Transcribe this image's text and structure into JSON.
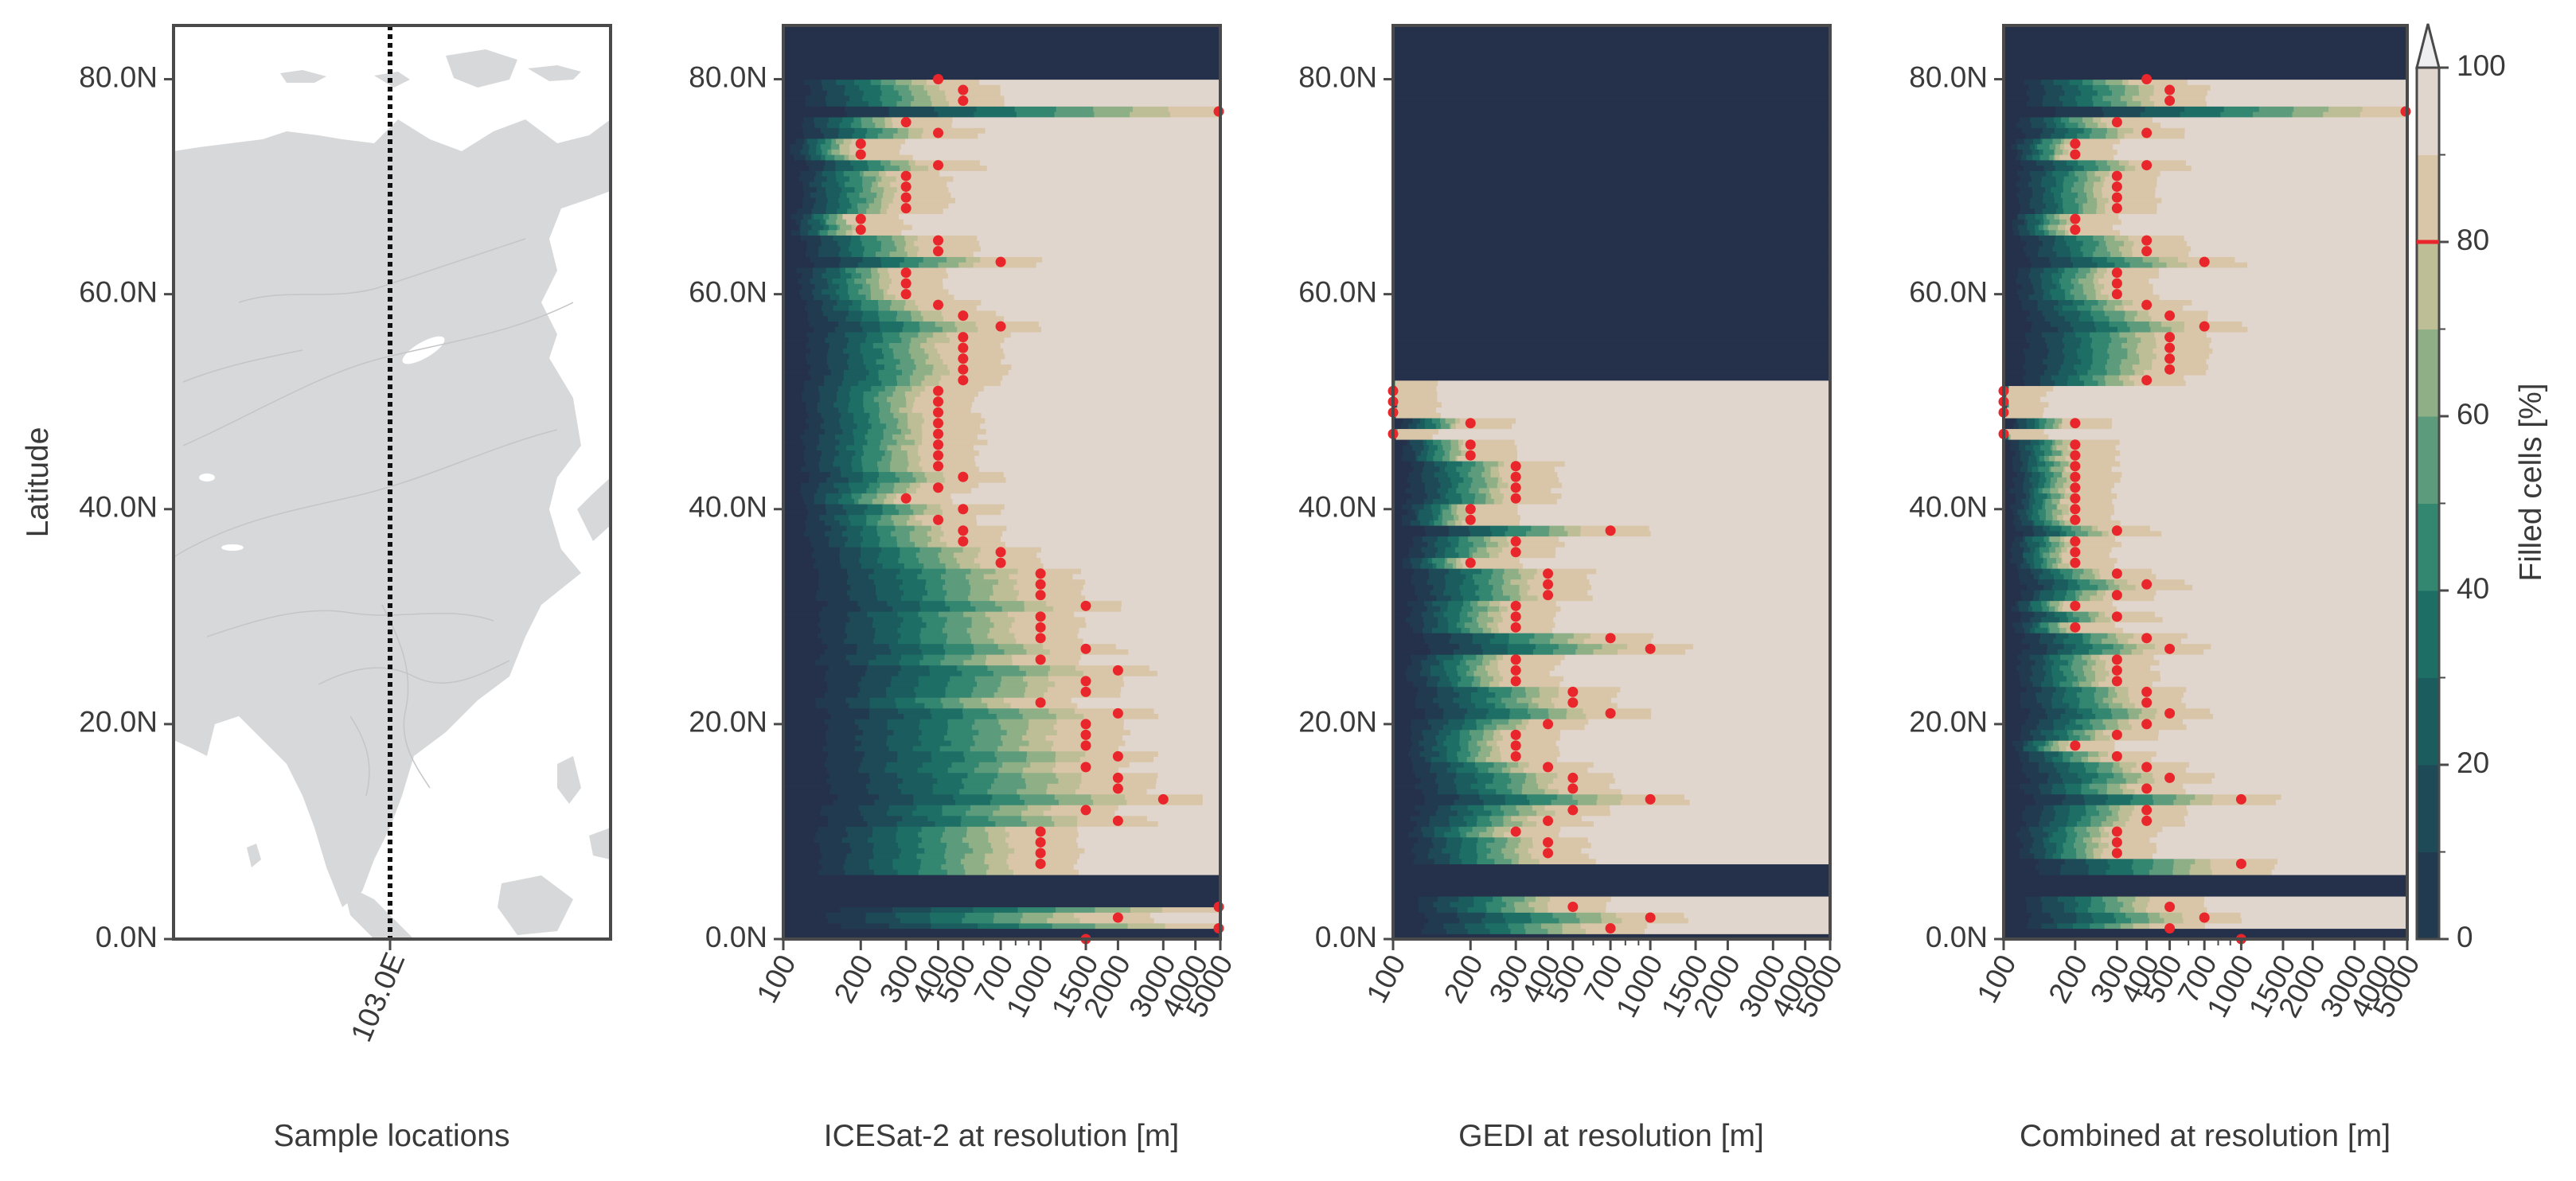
{
  "colors": {
    "bands": [
      "#25314a",
      "#213a4f",
      "#1e4a57",
      "#1b5c5e",
      "#1d6f66",
      "#338670",
      "#5c9c7c",
      "#8faf86",
      "#bdbd96",
      "#d9c5a8",
      "#e1d6cd",
      "#eeedef"
    ],
    "point": "#e8262b",
    "land": "#d7d8d9",
    "border": "#4a4a4a",
    "colorbar_marker": "#e8262b"
  },
  "chart_data": [
    {
      "type": "map",
      "xlabel": "Sample locations",
      "ylabel": "Latitude",
      "x_tick": "103.0E",
      "ylim": [
        0,
        85
      ],
      "yticks": [
        0,
        20,
        40,
        60,
        80
      ],
      "ytick_labels": [
        "0.0N",
        "20.0N",
        "40.0N",
        "60.0N",
        "80.0N"
      ],
      "sample_longitude": 103.0
    },
    {
      "type": "heatmap",
      "xlabel": "ICESat-2 at resolution [m]",
      "xscale": "log",
      "xlim": [
        100,
        5000
      ],
      "xticks": [
        100,
        200,
        300,
        400,
        500,
        700,
        1000,
        1500,
        2000,
        3000,
        4000,
        5000
      ],
      "xtick_labels": [
        "100",
        "200",
        "300",
        "400",
        "500",
        "700",
        "1000",
        "1500",
        "2000",
        "3000",
        "4000",
        "5000"
      ],
      "ylim": [
        0,
        85
      ],
      "yticks": [
        0,
        20,
        40,
        60,
        80
      ],
      "ytick_labels": [
        "0.0N",
        "20.0N",
        "40.0N",
        "60.0N",
        "80.0N"
      ],
      "empty_lat_bands": [
        [
          0,
          1
        ],
        [
          3,
          6
        ],
        [
          80,
          85
        ]
      ],
      "red_points": [
        [
          80,
          400
        ],
        [
          79,
          500
        ],
        [
          78,
          500
        ],
        [
          77,
          5000
        ],
        [
          76,
          300
        ],
        [
          75,
          400
        ],
        [
          74,
          200
        ],
        [
          73,
          200
        ],
        [
          72,
          400
        ],
        [
          71,
          300
        ],
        [
          70,
          300
        ],
        [
          69,
          300
        ],
        [
          68,
          300
        ],
        [
          67,
          200
        ],
        [
          66,
          200
        ],
        [
          65,
          400
        ],
        [
          64,
          400
        ],
        [
          63,
          700
        ],
        [
          62,
          300
        ],
        [
          61,
          300
        ],
        [
          60,
          300
        ],
        [
          59,
          400
        ],
        [
          58,
          500
        ],
        [
          57,
          700
        ],
        [
          56,
          500
        ],
        [
          55,
          500
        ],
        [
          54,
          500
        ],
        [
          53,
          500
        ],
        [
          52,
          500
        ],
        [
          51,
          400
        ],
        [
          50,
          400
        ],
        [
          49,
          400
        ],
        [
          48,
          400
        ],
        [
          47,
          400
        ],
        [
          46,
          400
        ],
        [
          45,
          400
        ],
        [
          44,
          400
        ],
        [
          43,
          500
        ],
        [
          42,
          400
        ],
        [
          41,
          300
        ],
        [
          40,
          500
        ],
        [
          39,
          400
        ],
        [
          38,
          500
        ],
        [
          37,
          500
        ],
        [
          36,
          700
        ],
        [
          35,
          700
        ],
        [
          34,
          1000
        ],
        [
          33,
          1000
        ],
        [
          32,
          1000
        ],
        [
          31,
          1500
        ],
        [
          30,
          1000
        ],
        [
          29,
          1000
        ],
        [
          28,
          1000
        ],
        [
          27,
          1500
        ],
        [
          26,
          1000
        ],
        [
          25,
          2000
        ],
        [
          24,
          1500
        ],
        [
          23,
          1500
        ],
        [
          22,
          1000
        ],
        [
          21,
          2000
        ],
        [
          20,
          1500
        ],
        [
          19,
          1500
        ],
        [
          18,
          1500
        ],
        [
          17,
          2000
        ],
        [
          16,
          1500
        ],
        [
          15,
          2000
        ],
        [
          14,
          2000
        ],
        [
          13,
          3000
        ],
        [
          12,
          1500
        ],
        [
          11,
          2000
        ],
        [
          10,
          1000
        ],
        [
          9,
          1000
        ],
        [
          8,
          1000
        ],
        [
          7,
          1000
        ],
        [
          3,
          5000
        ],
        [
          2,
          2000
        ],
        [
          1,
          5000
        ],
        [
          0,
          1500
        ]
      ]
    },
    {
      "type": "heatmap",
      "xlabel": "GEDI at resolution [m]",
      "xscale": "log",
      "xlim": [
        100,
        5000
      ],
      "xticks": [
        100,
        200,
        300,
        400,
        500,
        700,
        1000,
        1500,
        2000,
        3000,
        4000,
        5000
      ],
      "xtick_labels": [
        "100",
        "200",
        "300",
        "400",
        "500",
        "700",
        "1000",
        "1500",
        "2000",
        "3000",
        "4000",
        "5000"
      ],
      "ylim": [
        0,
        85
      ],
      "yticks": [
        0,
        20,
        40,
        60,
        80
      ],
      "ytick_labels": [
        "0.0N",
        "20.0N",
        "40.0N",
        "60.0N",
        "80.0N"
      ],
      "empty_lat_bands": [
        [
          0,
          0.5
        ],
        [
          4,
          7
        ],
        [
          52,
          85
        ]
      ],
      "red_points": [
        [
          51,
          100
        ],
        [
          50,
          100
        ],
        [
          49,
          100
        ],
        [
          48,
          200
        ],
        [
          47,
          100
        ],
        [
          46,
          200
        ],
        [
          45,
          200
        ],
        [
          44,
          300
        ],
        [
          43,
          300
        ],
        [
          42,
          300
        ],
        [
          41,
          300
        ],
        [
          40,
          200
        ],
        [
          39,
          200
        ],
        [
          38,
          700
        ],
        [
          37,
          300
        ],
        [
          36,
          300
        ],
        [
          35,
          200
        ],
        [
          34,
          400
        ],
        [
          33,
          400
        ],
        [
          32,
          400
        ],
        [
          31,
          300
        ],
        [
          30,
          300
        ],
        [
          29,
          300
        ],
        [
          28,
          700
        ],
        [
          27,
          1000
        ],
        [
          26,
          300
        ],
        [
          25,
          300
        ],
        [
          24,
          300
        ],
        [
          23,
          500
        ],
        [
          22,
          500
        ],
        [
          21,
          700
        ],
        [
          20,
          400
        ],
        [
          19,
          300
        ],
        [
          18,
          300
        ],
        [
          17,
          300
        ],
        [
          16,
          400
        ],
        [
          15,
          500
        ],
        [
          14,
          500
        ],
        [
          13,
          1000
        ],
        [
          12,
          500
        ],
        [
          11,
          400
        ],
        [
          10,
          300
        ],
        [
          9,
          400
        ],
        [
          8,
          400
        ],
        [
          3,
          500
        ],
        [
          2,
          1000
        ],
        [
          1,
          700
        ]
      ]
    },
    {
      "type": "heatmap",
      "xlabel": "Combined at resolution [m]",
      "xscale": "log",
      "xlim": [
        100,
        5000
      ],
      "xticks": [
        100,
        200,
        300,
        400,
        500,
        700,
        1000,
        1500,
        2000,
        3000,
        4000,
        5000
      ],
      "xtick_labels": [
        "100",
        "200",
        "300",
        "400",
        "500",
        "700",
        "1000",
        "1500",
        "2000",
        "3000",
        "4000",
        "5000"
      ],
      "ylim": [
        0,
        85
      ],
      "yticks": [
        0,
        20,
        40,
        60,
        80
      ],
      "ytick_labels": [
        "0.0N",
        "20.0N",
        "40.0N",
        "60.0N",
        "80.0N"
      ],
      "empty_lat_bands": [
        [
          0,
          1
        ],
        [
          4,
          6
        ],
        [
          80,
          85
        ]
      ],
      "red_points": [
        [
          80,
          400
        ],
        [
          79,
          500
        ],
        [
          78,
          500
        ],
        [
          77,
          5000
        ],
        [
          76,
          300
        ],
        [
          75,
          400
        ],
        [
          74,
          200
        ],
        [
          73,
          200
        ],
        [
          72,
          400
        ],
        [
          71,
          300
        ],
        [
          70,
          300
        ],
        [
          69,
          300
        ],
        [
          68,
          300
        ],
        [
          67,
          200
        ],
        [
          66,
          200
        ],
        [
          65,
          400
        ],
        [
          64,
          400
        ],
        [
          63,
          700
        ],
        [
          62,
          300
        ],
        [
          61,
          300
        ],
        [
          60,
          300
        ],
        [
          59,
          400
        ],
        [
          58,
          500
        ],
        [
          57,
          700
        ],
        [
          56,
          500
        ],
        [
          55,
          500
        ],
        [
          54,
          500
        ],
        [
          53,
          500
        ],
        [
          52,
          400
        ],
        [
          51,
          100
        ],
        [
          50,
          100
        ],
        [
          49,
          100
        ],
        [
          48,
          200
        ],
        [
          47,
          100
        ],
        [
          46,
          200
        ],
        [
          45,
          200
        ],
        [
          44,
          200
        ],
        [
          43,
          200
        ],
        [
          42,
          200
        ],
        [
          41,
          200
        ],
        [
          40,
          200
        ],
        [
          39,
          200
        ],
        [
          38,
          300
        ],
        [
          37,
          200
        ],
        [
          36,
          200
        ],
        [
          35,
          200
        ],
        [
          34,
          300
        ],
        [
          33,
          400
        ],
        [
          32,
          300
        ],
        [
          31,
          200
        ],
        [
          30,
          300
        ],
        [
          29,
          200
        ],
        [
          28,
          400
        ],
        [
          27,
          500
        ],
        [
          26,
          300
        ],
        [
          25,
          300
        ],
        [
          24,
          300
        ],
        [
          23,
          400
        ],
        [
          22,
          400
        ],
        [
          21,
          500
        ],
        [
          20,
          400
        ],
        [
          19,
          300
        ],
        [
          18,
          200
        ],
        [
          17,
          300
        ],
        [
          16,
          400
        ],
        [
          15,
          500
        ],
        [
          14,
          400
        ],
        [
          13,
          1000
        ],
        [
          12,
          400
        ],
        [
          11,
          400
        ],
        [
          10,
          300
        ],
        [
          9,
          300
        ],
        [
          8,
          300
        ],
        [
          7,
          1000
        ],
        [
          3,
          500
        ],
        [
          2,
          700
        ],
        [
          1,
          500
        ],
        [
          0,
          1000
        ]
      ]
    },
    {
      "type": "colorbar",
      "label": "Filled cells [%]",
      "range": [
        0,
        100
      ],
      "ticks": [
        0,
        20,
        40,
        60,
        80,
        100
      ],
      "tick_labels": [
        "0",
        "20",
        "40",
        "60",
        "80",
        "100"
      ],
      "highlight_value": 80,
      "extend": "max"
    }
  ]
}
